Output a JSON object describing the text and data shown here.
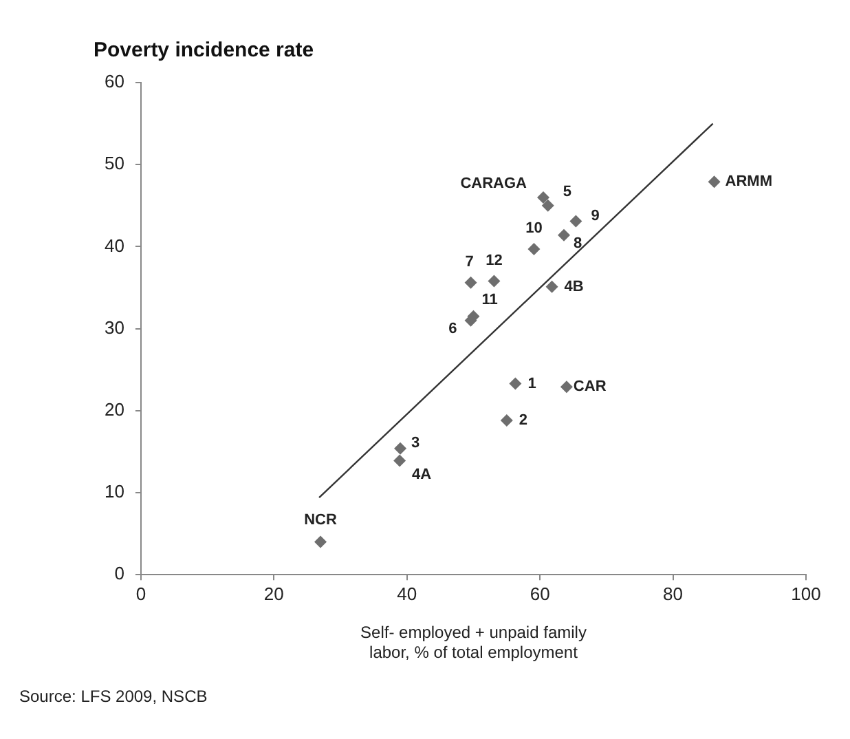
{
  "chart_data": {
    "type": "scatter",
    "title": "Poverty incidence rate",
    "xlabel": "Self- employed + unpaid family labor, % of total employment",
    "xlim": [
      0,
      100
    ],
    "xticks": [
      0,
      20,
      40,
      60,
      80,
      100
    ],
    "ylim": [
      0,
      60
    ],
    "yticks": [
      0,
      10,
      20,
      30,
      40,
      50,
      60
    ],
    "grid": false,
    "legend": false,
    "marker": "diamond",
    "series": [
      {
        "type": "scatter",
        "color": "#6e6e6e",
        "x": [
          27.0,
          39.0,
          38.9,
          55.0,
          56.3,
          64.0,
          49.6,
          50.0,
          49.6,
          53.1,
          61.8,
          59.1,
          63.6,
          65.4,
          60.5,
          61.2,
          86.2
        ],
        "values": [
          4.0,
          15.4,
          13.9,
          18.8,
          23.3,
          22.9,
          31.0,
          31.5,
          35.6,
          35.8,
          35.1,
          39.7,
          41.4,
          43.1,
          46.0,
          45.0,
          47.9
        ]
      },
      {
        "type": "line",
        "color": "#333333",
        "marker": "none",
        "x": [
          26.8,
          86.0
        ],
        "values": [
          9.4,
          55.0
        ]
      }
    ],
    "annotations": [
      {
        "text": "NCR",
        "x": 27.0,
        "y": 4.0
      },
      {
        "text": "3",
        "x": 39.0,
        "y": 15.4
      },
      {
        "text": "4A",
        "x": 38.9,
        "y": 13.9
      },
      {
        "text": "2",
        "x": 55.0,
        "y": 18.8
      },
      {
        "text": "1",
        "x": 56.3,
        "y": 23.3
      },
      {
        "text": "CAR",
        "x": 64.0,
        "y": 22.9
      },
      {
        "text": "6",
        "x": 49.6,
        "y": 31.0
      },
      {
        "text": "11",
        "x": 50.0,
        "y": 31.5
      },
      {
        "text": "7",
        "x": 49.6,
        "y": 35.6
      },
      {
        "text": "12",
        "x": 53.1,
        "y": 35.8
      },
      {
        "text": "4B",
        "x": 61.8,
        "y": 35.1
      },
      {
        "text": "10",
        "x": 59.1,
        "y": 39.7
      },
      {
        "text": "8",
        "x": 63.6,
        "y": 41.4
      },
      {
        "text": "9",
        "x": 65.4,
        "y": 43.1
      },
      {
        "text": "CARAGA",
        "x": 60.5,
        "y": 46.0
      },
      {
        "text": "5",
        "x": 61.2,
        "y": 45.0
      },
      {
        "text": "ARMM",
        "x": 86.2,
        "y": 47.9
      },
      "Source: LFS 2009, NSCB"
    ]
  }
}
